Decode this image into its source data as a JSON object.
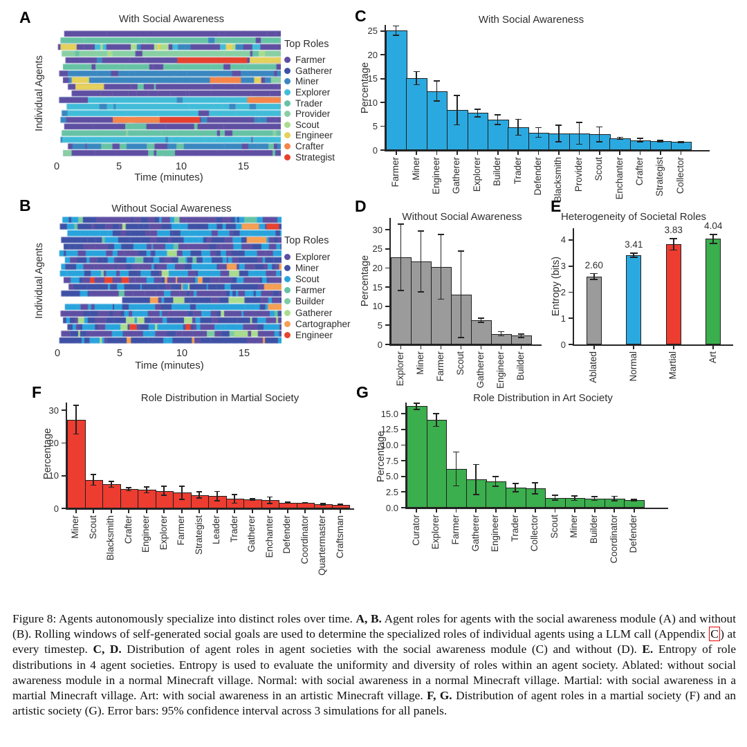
{
  "chart_data": [
    {
      "id": "A",
      "panel_label": "A",
      "type": "heatmap",
      "title": "With Social Awareness",
      "ylabel": "Individual Agents",
      "xlabel": "Time (minutes)",
      "x_range": [
        0,
        18
      ],
      "xticks": [
        0,
        5,
        10,
        15
      ],
      "n_rows": 19,
      "legend_title": "Top Roles",
      "roles": [
        {
          "label": "Farmer",
          "color": "#5e4fa2"
        },
        {
          "label": "Gatherer",
          "color": "#3f51a5"
        },
        {
          "label": "Miner",
          "color": "#3a87c0"
        },
        {
          "label": "Explorer",
          "color": "#41bcd8"
        },
        {
          "label": "Trader",
          "color": "#66c2a5"
        },
        {
          "label": "Provider",
          "color": "#88cfa4"
        },
        {
          "label": "Scout",
          "color": "#aadc8e"
        },
        {
          "label": "Engineer",
          "color": "#e5d15b"
        },
        {
          "label": "Crafter",
          "color": "#f5854a"
        },
        {
          "label": "Strategist",
          "color": "#e6402e"
        }
      ],
      "seed": 1337,
      "base_run": 2.2,
      "rows": [
        {
          "start": 0.6,
          "base": 0,
          "mix": [
            4
          ],
          "noise": 0.07
        },
        {
          "start": 0.3,
          "base": 4,
          "mix": [
            5,
            0,
            2
          ],
          "noise": 0.35
        },
        {
          "start": 0.1,
          "base": 0,
          "mix": [
            7,
            2,
            3,
            6
          ],
          "noise": 0.6,
          "runs": [
            [
              0.3,
              1.6,
              7
            ]
          ]
        },
        {
          "start": 0.4,
          "base": 5,
          "mix": [
            0,
            6,
            4
          ],
          "noise": 0.45
        },
        {
          "start": 0.7,
          "base": 0,
          "mix": [
            2
          ],
          "noise": 0.08,
          "runs": [
            [
              9.7,
              15.3,
              9
            ],
            [
              15.5,
              18,
              7
            ]
          ]
        },
        {
          "start": 0.5,
          "base": 4,
          "mix": [
            0
          ],
          "noise": 0.18
        },
        {
          "start": 0.2,
          "base": 2,
          "mix": [
            0
          ],
          "noise": 0.16
        },
        {
          "start": 0.5,
          "base": 2,
          "mix": [
            0,
            7
          ],
          "noise": 0.28,
          "runs": [
            [
              1.2,
              2.6,
              7
            ],
            [
              12.3,
              14.8,
              8
            ],
            [
              17.2,
              18,
              5
            ]
          ]
        },
        {
          "start": 0.9,
          "base": 0,
          "mix": [
            4
          ],
          "noise": 0.16,
          "runs": [
            [
              1.5,
              3.8,
              7
            ]
          ]
        },
        {
          "start": 1.2,
          "base": 0,
          "mix": [
            4
          ],
          "noise": 0.03
        },
        {
          "start": 0.2,
          "base": 3,
          "mix": [
            2
          ],
          "noise": 0.1,
          "runs": [
            [
              0.2,
              2.5,
              0
            ],
            [
              15.3,
              18,
              8
            ]
          ]
        },
        {
          "start": 0.8,
          "base": 3,
          "mix": [
            2
          ],
          "noise": 0.16
        },
        {
          "start": 0.4,
          "base": 3,
          "mix": [
            2,
            0
          ],
          "noise": 0.28
        },
        {
          "start": 0.3,
          "base": 0,
          "mix": [
            2,
            5
          ],
          "noise": 0.3,
          "runs": [
            [
              4.5,
              8.3,
              8
            ],
            [
              8.3,
              11.5,
              9
            ]
          ]
        },
        {
          "start": 0.6,
          "base": 0,
          "mix": [
            6,
            4
          ],
          "noise": 0.26,
          "runs": [
            [
              5.5,
              7.2,
              4
            ]
          ]
        },
        {
          "start": 0.4,
          "base": 4,
          "mix": [
            5,
            0
          ],
          "noise": 0.32
        },
        {
          "start": 0.3,
          "base": 3,
          "mix": [
            0,
            2
          ],
          "noise": 0.3
        },
        {
          "start": 0.9,
          "base": 2,
          "mix": [
            0,
            4
          ],
          "noise": 0.3
        },
        {
          "start": 0.5,
          "base": 0,
          "mix": [
            4,
            5
          ],
          "noise": 0.2,
          "runs": [
            [
              0.5,
              1.2,
              5
            ],
            [
              8,
              9.5,
              4
            ]
          ]
        }
      ]
    },
    {
      "id": "B",
      "panel_label": "B",
      "type": "heatmap",
      "title": "Without Social Awareness",
      "ylabel": "Individual Agents",
      "xlabel": "Time (minutes)",
      "x_range": [
        0,
        18
      ],
      "xticks": [
        0,
        5,
        10,
        15
      ],
      "n_rows": 19,
      "legend_title": "Top Roles",
      "roles": [
        {
          "label": "Explorer",
          "color": "#5e4fa2"
        },
        {
          "label": "Miner",
          "color": "#3f51a5"
        },
        {
          "label": "Scout",
          "color": "#29a3dc"
        },
        {
          "label": "Farmer",
          "color": "#66c2a5"
        },
        {
          "label": "Builder",
          "color": "#7dcba1"
        },
        {
          "label": "Gatherer",
          "color": "#aadc8e"
        },
        {
          "label": "Cartographer",
          "color": "#f5a054"
        },
        {
          "label": "Engineer",
          "color": "#e8432e"
        }
      ],
      "seed": 2024,
      "base_run": 0.8,
      "rows": [
        {
          "start": 0.4,
          "base": 0,
          "mix": [
            1,
            2
          ],
          "noise": 0.55,
          "accents": [
            3,
            4,
            5,
            6
          ],
          "accentP": 0.1
        },
        {
          "start": 0.2,
          "base": 1,
          "mix": [
            0,
            2
          ],
          "noise": 0.55,
          "accents": [
            3,
            5,
            6
          ],
          "accentP": 0.1,
          "runs": [
            [
              14.8,
              16.2,
              6
            ],
            [
              16.8,
              17.8,
              7
            ]
          ]
        },
        {
          "start": 0.8,
          "base": 2,
          "mix": [
            0,
            1
          ],
          "noise": 0.55,
          "accents": [
            3,
            4,
            7
          ],
          "accentP": 0.08
        },
        {
          "start": 0.3,
          "base": 1,
          "mix": [
            0,
            2
          ],
          "noise": 0.55,
          "accents": [
            3,
            5,
            6
          ],
          "accentP": 0.1,
          "runs": [
            [
              15.2,
              16.8,
              6
            ]
          ]
        },
        {
          "start": 0.5,
          "base": 0,
          "mix": [
            1,
            2
          ],
          "noise": 0.55,
          "accents": [
            3,
            4,
            5
          ],
          "accentP": 0.1
        },
        {
          "start": 0.15,
          "base": 2,
          "mix": [
            0,
            1
          ],
          "noise": 0.55,
          "accents": [
            5,
            6
          ],
          "accentP": 0.08,
          "runs": [
            [
              8.8,
              9.6,
              5
            ]
          ]
        },
        {
          "start": 0.6,
          "base": 1,
          "mix": [
            0,
            2
          ],
          "noise": 0.55,
          "accents": [
            3,
            5
          ],
          "accentP": 0.08
        },
        {
          "start": 0.3,
          "base": 0,
          "mix": [
            1,
            2
          ],
          "noise": 0.55,
          "accents": [
            5,
            6
          ],
          "accentP": 0.1,
          "runs": [
            [
              13.6,
              14.4,
              6
            ]
          ]
        },
        {
          "start": 0.2,
          "base": 2,
          "mix": [
            0,
            1
          ],
          "noise": 0.55,
          "accents": [
            4,
            5
          ],
          "accentP": 0.08,
          "runs": [
            [
              13.8,
              14.6,
              5
            ]
          ]
        },
        {
          "start": 0.5,
          "base": 0,
          "mix": [
            1,
            2
          ],
          "noise": 0.55,
          "accents": [
            3,
            6,
            7
          ],
          "accentP": 0.08
        },
        {
          "start": 0.9,
          "base": 1,
          "mix": [
            0,
            2
          ],
          "noise": 0.55,
          "accents": [
            5,
            6
          ],
          "accentP": 0.1,
          "runs": [
            [
              16.6,
              18,
              6
            ]
          ]
        },
        {
          "start": 0.3,
          "base": 0,
          "mix": [
            1,
            2
          ],
          "noise": 0.55,
          "accents": [
            3,
            4
          ],
          "accentP": 0.08
        },
        {
          "start": 5.2,
          "base": 1,
          "mix": [
            0,
            2
          ],
          "noise": 0.55,
          "accents": [
            5,
            6
          ],
          "accentP": 0.1,
          "runs": [
            [
              9.3,
              10.2,
              5
            ]
          ]
        },
        {
          "start": 0.6,
          "base": 2,
          "mix": [
            0,
            1
          ],
          "noise": 0.55,
          "accents": [
            5,
            6,
            7
          ],
          "accentP": 0.1,
          "runs": [
            [
              16.9,
              18,
              6
            ]
          ]
        },
        {
          "start": 0.25,
          "base": 0,
          "mix": [
            1,
            2
          ],
          "noise": 0.55,
          "accents": [
            3,
            5
          ],
          "accentP": 0.08
        },
        {
          "start": 0.45,
          "base": 1,
          "mix": [
            0,
            2
          ],
          "noise": 0.55,
          "accents": [
            5
          ],
          "accentP": 0.1,
          "runs": [
            [
              5.5,
              6.2,
              5
            ]
          ]
        },
        {
          "start": 0.8,
          "base": 2,
          "mix": [
            0,
            1
          ],
          "noise": 0.55,
          "accents": [
            5,
            7
          ],
          "accentP": 0.08,
          "runs": [
            [
              10.3,
              10.7,
              7
            ]
          ]
        },
        {
          "start": 0.3,
          "base": 0,
          "mix": [
            1,
            2
          ],
          "noise": 0.55,
          "accents": [
            4,
            5
          ],
          "accentP": 0.08,
          "runs": [
            [
              14.2,
              15.3,
              5
            ]
          ]
        },
        {
          "start": 0.15,
          "base": 1,
          "mix": [
            0,
            2
          ],
          "noise": 0.55,
          "accents": [
            5,
            6
          ],
          "accentP": 0.1
        }
      ]
    },
    {
      "id": "C",
      "panel_label": "C",
      "type": "bar",
      "title": "With Social Awareness",
      "ylabel": "Percentage",
      "categories": [
        "Farmer",
        "Miner",
        "Engineer",
        "Gatherer",
        "Explorer",
        "Builder",
        "Trader",
        "Defender",
        "Blacksmith",
        "Provider",
        "Scout",
        "Enchanter",
        "Crafter",
        "Strategist",
        "Collector"
      ],
      "values": [
        25.1,
        15.1,
        12.4,
        8.4,
        7.8,
        6.4,
        4.8,
        3.7,
        3.5,
        3.5,
        3.3,
        2.5,
        2.1,
        1.9,
        1.7
      ],
      "errors": [
        1.1,
        1.5,
        2.25,
        3.2,
        0.9,
        1.1,
        1.8,
        1.15,
        1.85,
        2.4,
        1.7,
        0.3,
        0.5,
        0.25,
        0.2
      ],
      "bar_color": "#2aa9e0",
      "yticks": [
        0,
        5,
        10,
        15,
        20,
        25
      ],
      "ytick_labels": [
        "0",
        "5",
        "10",
        "15",
        "20",
        "25"
      ],
      "ylim": [
        0,
        26.3
      ]
    },
    {
      "id": "D",
      "panel_label": "D",
      "type": "bar",
      "title": "Without Social Awareness",
      "ylabel": "Percentage",
      "categories": [
        "Explorer",
        "Miner",
        "Farmer",
        "Scout",
        "Gatherer",
        "Engineer",
        "Builder"
      ],
      "values": [
        22.8,
        21.7,
        20.3,
        13.1,
        6.3,
        2.8,
        2.3
      ],
      "errors": [
        8.8,
        8.1,
        8.6,
        11.5,
        0.7,
        0.7,
        0.6
      ],
      "bar_color": "#9b9b9b",
      "yticks": [
        0,
        5,
        10,
        15,
        20,
        25,
        30
      ],
      "ytick_labels": [
        "0",
        "5",
        "10",
        "15",
        "20",
        "25",
        "30"
      ],
      "ylim": [
        0,
        33.1
      ]
    },
    {
      "id": "E",
      "panel_label": "E",
      "type": "bar",
      "title": "Heterogeneity of Societal Roles",
      "ylabel": "Entropy (bits)",
      "categories": [
        "Ablated",
        "Normal",
        "Martial",
        "Art"
      ],
      "values": [
        2.6,
        3.41,
        3.83,
        4.04
      ],
      "errors": [
        0.14,
        0.1,
        0.24,
        0.2
      ],
      "value_labels": [
        "2.60",
        "3.41",
        "3.83",
        "4.04"
      ],
      "bar_colors": [
        "#9b9b9b",
        "#2aa9e0",
        "#ed3c30",
        "#3bae4d"
      ],
      "yticks": [
        0,
        1,
        2,
        3,
        4
      ],
      "ytick_labels": [
        "0",
        "1",
        "2",
        "3",
        "4"
      ],
      "ylim": [
        0,
        4.45
      ]
    },
    {
      "id": "F",
      "panel_label": "F",
      "type": "bar",
      "title": "Role Distribution in Martial Society",
      "ylabel": "Percentage",
      "categories": [
        "Miner",
        "Scout",
        "Blacksmith",
        "Crafter",
        "Engineer",
        "Explorer",
        "Farmer",
        "Strategist",
        "Leader",
        "Trader",
        "Gatherer",
        "Enchanter",
        "Defender",
        "Coordinator",
        "Quartermaster",
        "Craftsman"
      ],
      "values": [
        27.2,
        8.7,
        7.4,
        5.9,
        5.7,
        5.4,
        4.8,
        4.1,
        3.8,
        2.9,
        2.8,
        2.5,
        1.8,
        1.7,
        1.2,
        1.1
      ],
      "errors": [
        4.6,
        1.8,
        1.1,
        0.7,
        1.1,
        1.5,
        2.2,
        1.1,
        1.6,
        1.5,
        0.4,
        1.2,
        0.3,
        0.3,
        0.4,
        0.3
      ],
      "bar_color": "#ed3c30",
      "yticks": [
        0,
        10,
        20,
        30
      ],
      "ytick_labels": [
        "0",
        "10",
        "20",
        "30"
      ],
      "ylim": [
        0,
        32.4
      ]
    },
    {
      "id": "G",
      "panel_label": "G",
      "type": "bar",
      "title": "Role Distribution in Art Society",
      "ylabel": "Percentage",
      "categories": [
        "Curator",
        "Explorer",
        "Farmer",
        "Gatherer",
        "Engineer",
        "Trader",
        "Collector",
        "Scout",
        "Miner",
        "Builder",
        "Coordinator",
        "Defender"
      ],
      "values": [
        16.2,
        14.0,
        6.2,
        4.5,
        4.2,
        3.2,
        3.1,
        1.6,
        1.5,
        1.45,
        1.45,
        1.2
      ],
      "errors": [
        0.6,
        1.1,
        2.8,
        2.5,
        0.9,
        0.75,
        0.95,
        0.5,
        0.45,
        0.4,
        0.45,
        0.25
      ],
      "bar_color": "#3bae4d",
      "yticks": [
        0,
        2.5,
        5,
        7.5,
        10,
        12.5,
        15
      ],
      "ytick_labels": [
        "0.0",
        "2.5",
        "5.0",
        "7.5",
        "10.0",
        "12.5",
        "15.0"
      ],
      "ylim": [
        0,
        16.8
      ]
    }
  ],
  "caption": {
    "segments": [
      {
        "t": "Figure 8: Agents autonomously specialize into distinct roles over time. "
      },
      {
        "t": "A, B.",
        "b": true
      },
      {
        "t": " Agent roles for agents with the social awareness module (A) and without (B). Rolling windows of self-generated social goals are used to determine the specialized roles of individual agents using a LLM call (Appendix "
      },
      {
        "t": "C",
        "box": true
      },
      {
        "t": ") at every timestep. "
      },
      {
        "t": "C, D.",
        "b": true
      },
      {
        "t": " Distribution of agent roles in agent societies with the social awareness module (C) and without (D). "
      },
      {
        "t": "E.",
        "b": true
      },
      {
        "t": " Entropy of role distributions in 4 agent societies. Entropy is used to evaluate the uniformity and diversity of roles within an agent society. Ablated: without social awareness module in a normal Minecraft village. Normal: with social awareness in a normal Minecraft village. Martial: with social awareness in a martial Minecraft village. Art: with social awareness in an artistic Minecraft village. "
      },
      {
        "t": "F, G.",
        "b": true
      },
      {
        "t": " Distribution of agent roles in a martial society (F) and an artistic society (G). Error bars: 95% confidence interval across 3 simulations for all panels."
      }
    ]
  }
}
